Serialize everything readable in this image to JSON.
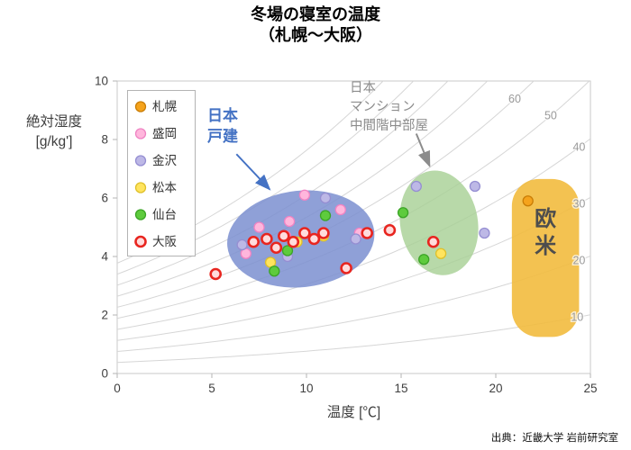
{
  "title": {
    "line1": "冬場の寝室の温度",
    "line2": "（札幌〜大阪）"
  },
  "source": "出典：近畿大学 岩前研究室",
  "annotations": {
    "house": {
      "text": "日本\n戸建",
      "color": "#4472c4"
    },
    "mansion": {
      "text": "日本\nマンション\n中間階中部屋",
      "color": "#8c8c8c"
    }
  },
  "chart_data": {
    "type": "scatter",
    "title": "冬場の寝室の温度（札幌〜大阪）",
    "xlabel": "温度 [℃]",
    "ylabel": "絶対湿度 [g/kg']",
    "ylabel_lines": [
      "絶対湿度",
      "[g/kg']"
    ],
    "xlim": [
      0,
      25
    ],
    "ylim": [
      0,
      10
    ],
    "xticks": [
      0,
      5,
      10,
      15,
      20,
      25
    ],
    "yticks": [
      0,
      2,
      4,
      6,
      8,
      10
    ],
    "grid": false,
    "legend_position": "upper-left-inside",
    "rh_curves": {
      "note": "constant relative-humidity (%) curves on psychrometric background",
      "values": [
        10,
        20,
        30,
        40,
        50,
        60,
        70,
        80,
        90,
        100
      ],
      "labels": [
        {
          "value": 60,
          "t": 21.0
        },
        {
          "value": 50,
          "t": 22.9
        },
        {
          "value": 40,
          "t": 24.4
        },
        {
          "value": 30,
          "t": 24.4
        },
        {
          "value": 20,
          "t": 24.4
        },
        {
          "value": 10,
          "t": 24.3
        }
      ]
    },
    "series": [
      {
        "name": "札幌",
        "key": "sapporo",
        "fill": "#f5a31c",
        "stroke": "#c97d06",
        "points": [
          [
            21.7,
            5.9
          ]
        ]
      },
      {
        "name": "盛岡",
        "key": "morioka",
        "fill": "#ffb6dc",
        "stroke": "#ef83c3",
        "points": [
          [
            6.8,
            4.1
          ],
          [
            7.5,
            5.0
          ],
          [
            8.9,
            4.7
          ],
          [
            9.1,
            5.2
          ],
          [
            9.9,
            6.1
          ],
          [
            11.8,
            5.6
          ],
          [
            12.8,
            4.8
          ]
        ]
      },
      {
        "name": "金沢",
        "key": "kanazawa",
        "fill": "#bdb8e6",
        "stroke": "#958ed2",
        "points": [
          [
            6.6,
            4.4
          ],
          [
            9.0,
            4.0
          ],
          [
            11.0,
            6.0
          ],
          [
            12.6,
            4.6
          ],
          [
            15.8,
            6.4
          ],
          [
            18.9,
            6.4
          ],
          [
            19.4,
            4.8
          ]
        ]
      },
      {
        "name": "松本",
        "key": "matsumoto",
        "fill": "#ffe45e",
        "stroke": "#dfc02a",
        "points": [
          [
            8.1,
            3.8
          ],
          [
            9.5,
            4.5
          ],
          [
            10.9,
            4.7
          ],
          [
            17.1,
            4.1
          ]
        ]
      },
      {
        "name": "仙台",
        "key": "sendai",
        "fill": "#5ecb3d",
        "stroke": "#3ba426",
        "points": [
          [
            8.3,
            3.5
          ],
          [
            9.0,
            4.2
          ],
          [
            11.0,
            5.4
          ],
          [
            15.1,
            5.5
          ],
          [
            16.2,
            3.9
          ]
        ]
      },
      {
        "name": "大阪",
        "key": "osaka",
        "fill": "#ffdcdc",
        "stroke": "#e8251f",
        "points": [
          [
            5.2,
            3.4
          ],
          [
            7.2,
            4.5
          ],
          [
            7.9,
            4.6
          ],
          [
            8.4,
            4.3
          ],
          [
            8.8,
            4.7
          ],
          [
            9.3,
            4.5
          ],
          [
            9.9,
            4.8
          ],
          [
            10.4,
            4.6
          ],
          [
            10.9,
            4.8
          ],
          [
            12.1,
            3.6
          ],
          [
            13.2,
            4.8
          ],
          [
            14.4,
            4.9
          ],
          [
            16.7,
            4.5
          ]
        ]
      }
    ],
    "regions": [
      {
        "shape": "ellipse",
        "label": "日本 戸建",
        "cx": 9.7,
        "cy": 4.6,
        "rx": 3.9,
        "ry": 1.65,
        "rot": -6,
        "fill": "#7b8fd0",
        "opacity": 0.85
      },
      {
        "shape": "ellipse",
        "label": "日本 マンション 中間階中部屋",
        "cx": 17.0,
        "cy": 5.15,
        "rx": 2.05,
        "ry": 1.8,
        "rot": -10,
        "fill": "#a6cf93",
        "opacity": 0.8
      },
      {
        "shape": "round-rect",
        "label": "欧米",
        "x0": 20.85,
        "x1": 24.4,
        "y0": 1.25,
        "y1": 6.65,
        "fill": "#f2bb3e",
        "opacity": 0.9,
        "label_color": "#4d4d4d"
      }
    ],
    "arrows": [
      {
        "from": [
          6.3,
          7.5
        ],
        "to": [
          8.05,
          6.3
        ],
        "color": "#4472c4"
      },
      {
        "from": [
          15.8,
          8.2
        ],
        "to": [
          16.5,
          7.1
        ],
        "color": "#8c8c8c"
      }
    ]
  }
}
